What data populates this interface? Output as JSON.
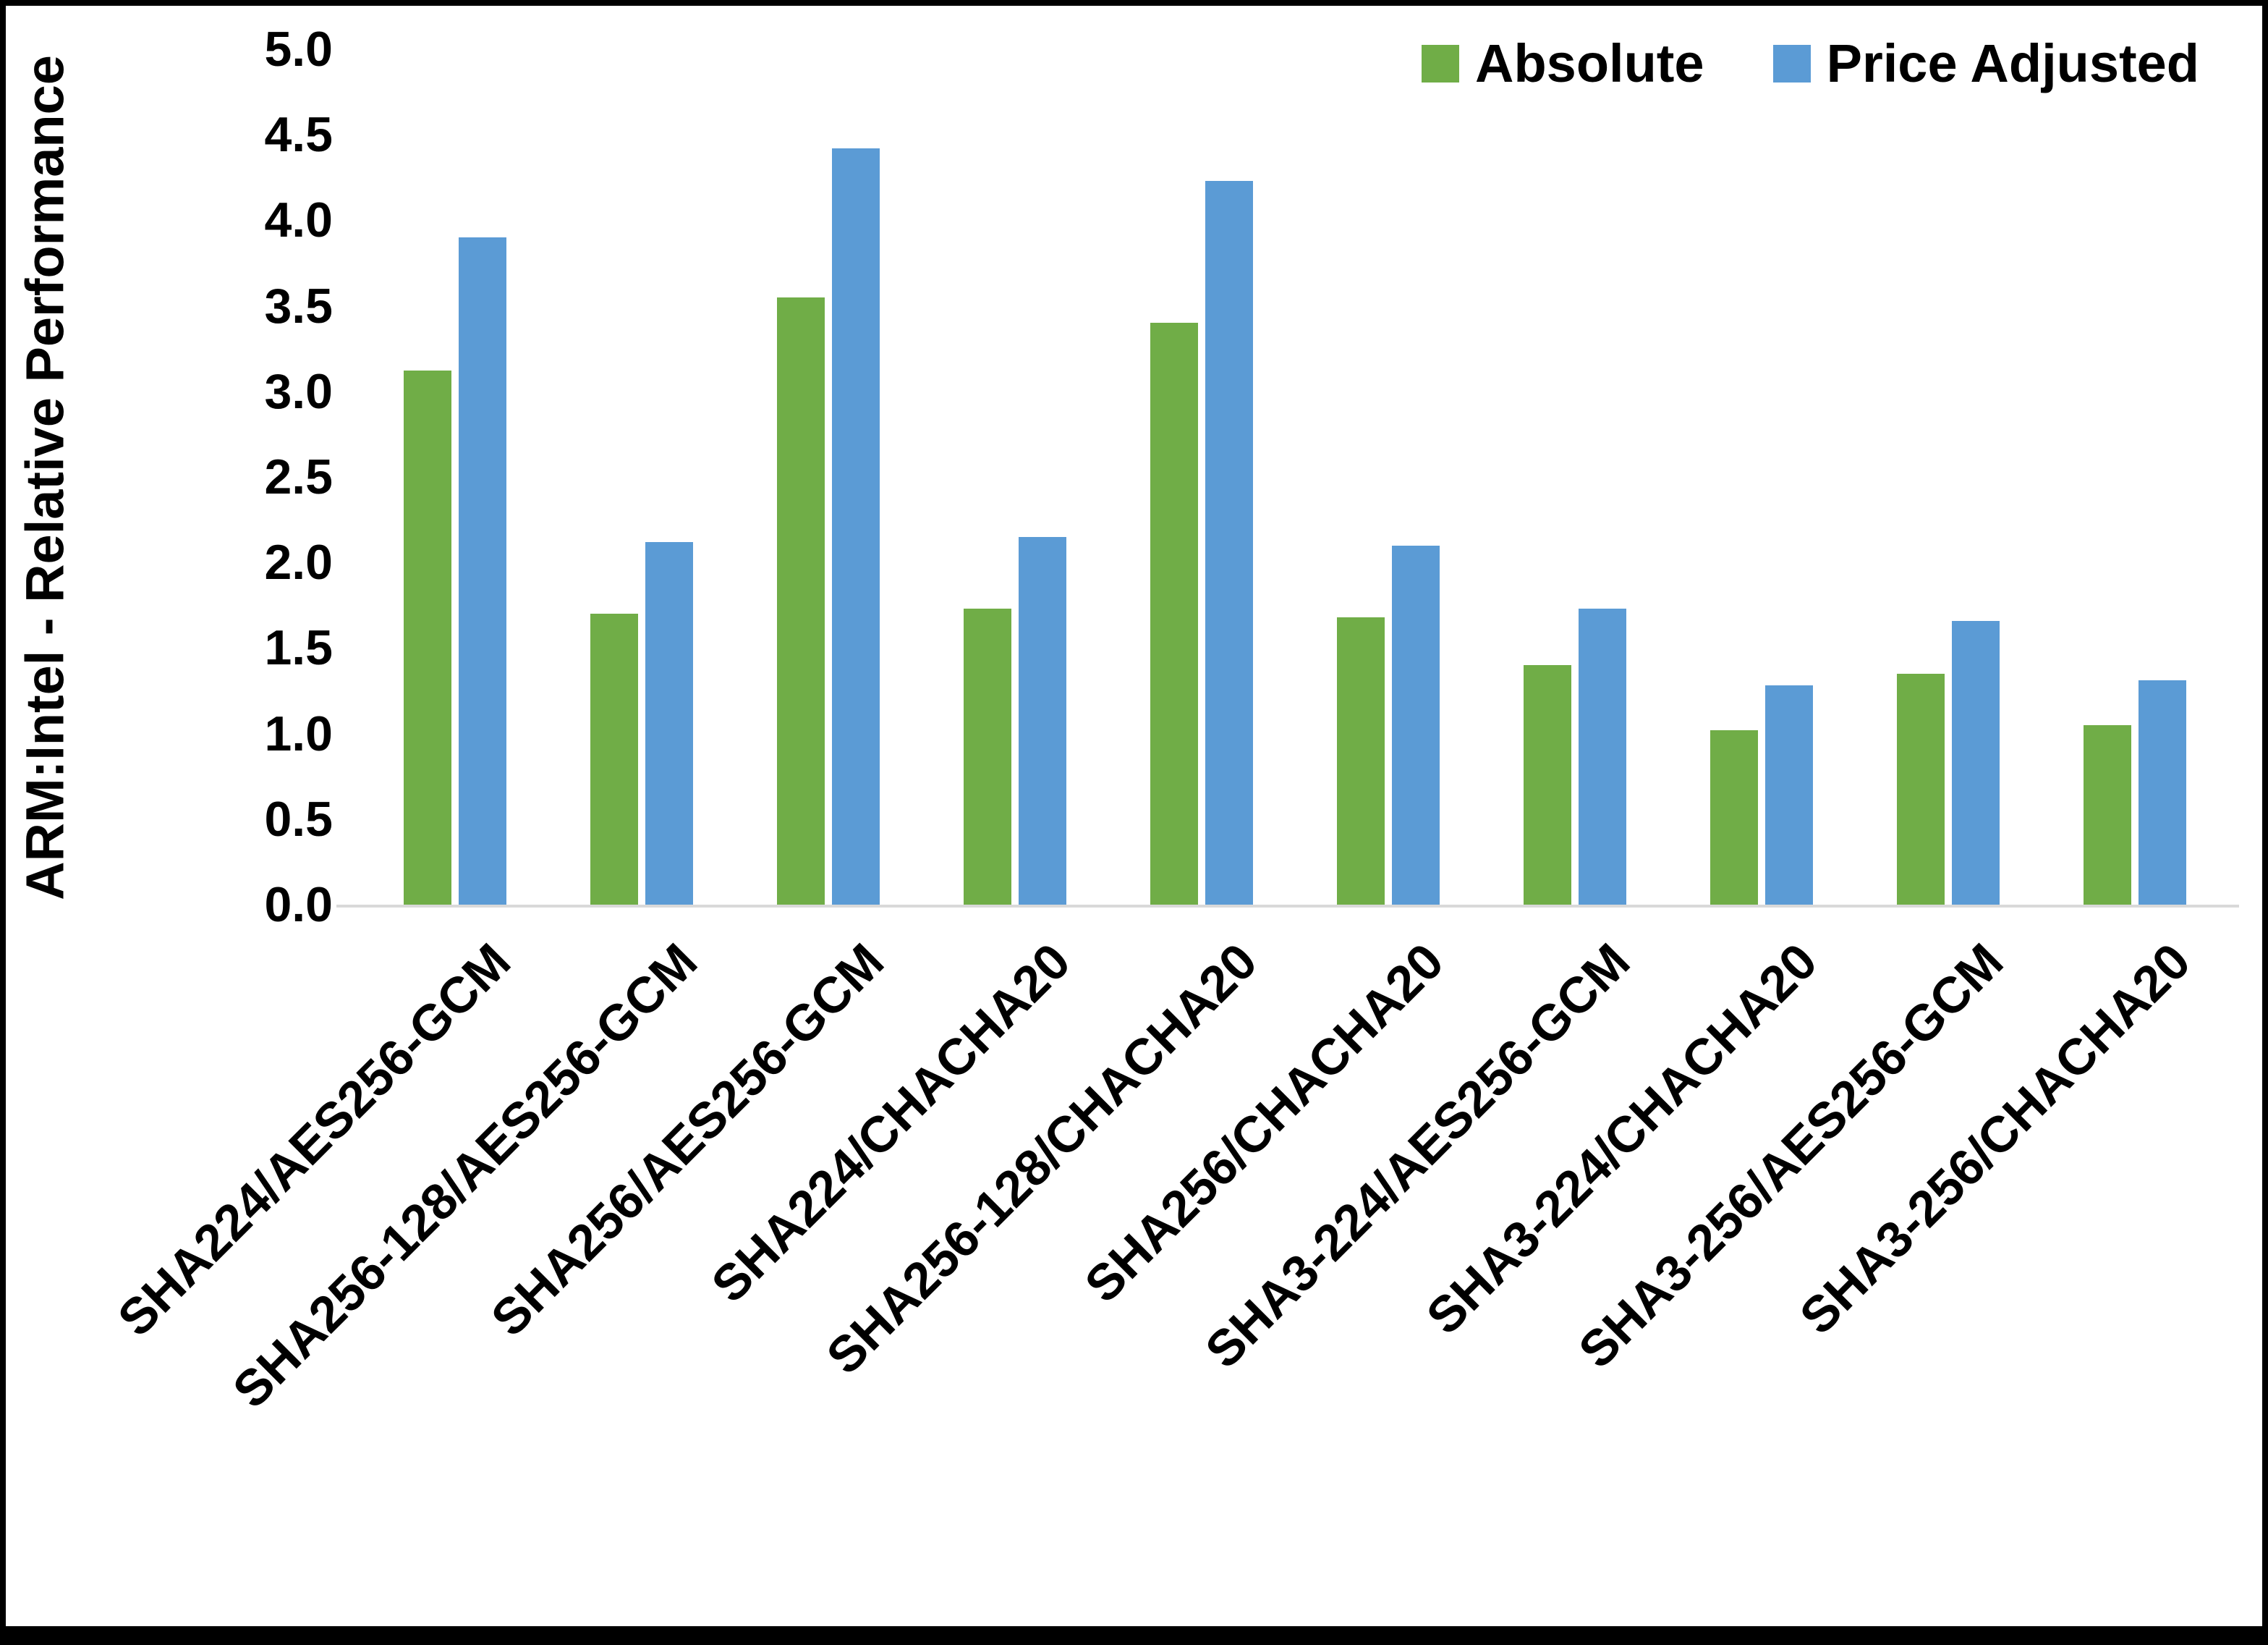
{
  "chart_data": {
    "type": "bar",
    "title": "",
    "xlabel": "",
    "ylabel": "ARM:Intel - Relative Performance",
    "ylim": [
      0,
      5
    ],
    "ytick_step": 0.5,
    "grid": false,
    "legend_position": "top-right",
    "categories": [
      "SHA224/AES256-GCM",
      "SHA256-128/AES256-GCM",
      "SHA256/AES256-GCM",
      "SHA224/CHACHA20",
      "SHA256-128/CHACHA20",
      "SHA256/CHACHA20",
      "SHA3-224/AES256-GCM",
      "SHA3-224/CHACHA20",
      "SHA3-256/AES256-GCM",
      "SHA3-256/CHACHA20"
    ],
    "series": [
      {
        "name": "Absolute",
        "color": "#70AD47",
        "values": [
          3.12,
          1.7,
          3.55,
          1.73,
          3.4,
          1.68,
          1.4,
          1.02,
          1.35,
          1.05
        ]
      },
      {
        "name": "Price Adjusted",
        "color": "#5B9BD5",
        "values": [
          3.9,
          2.12,
          4.42,
          2.15,
          4.23,
          2.1,
          1.73,
          1.28,
          1.66,
          1.31
        ]
      }
    ]
  },
  "colors": {
    "background": "#ffffff",
    "border": "#000000",
    "axis_line": "#d9d9d9",
    "text": "#000000"
  }
}
